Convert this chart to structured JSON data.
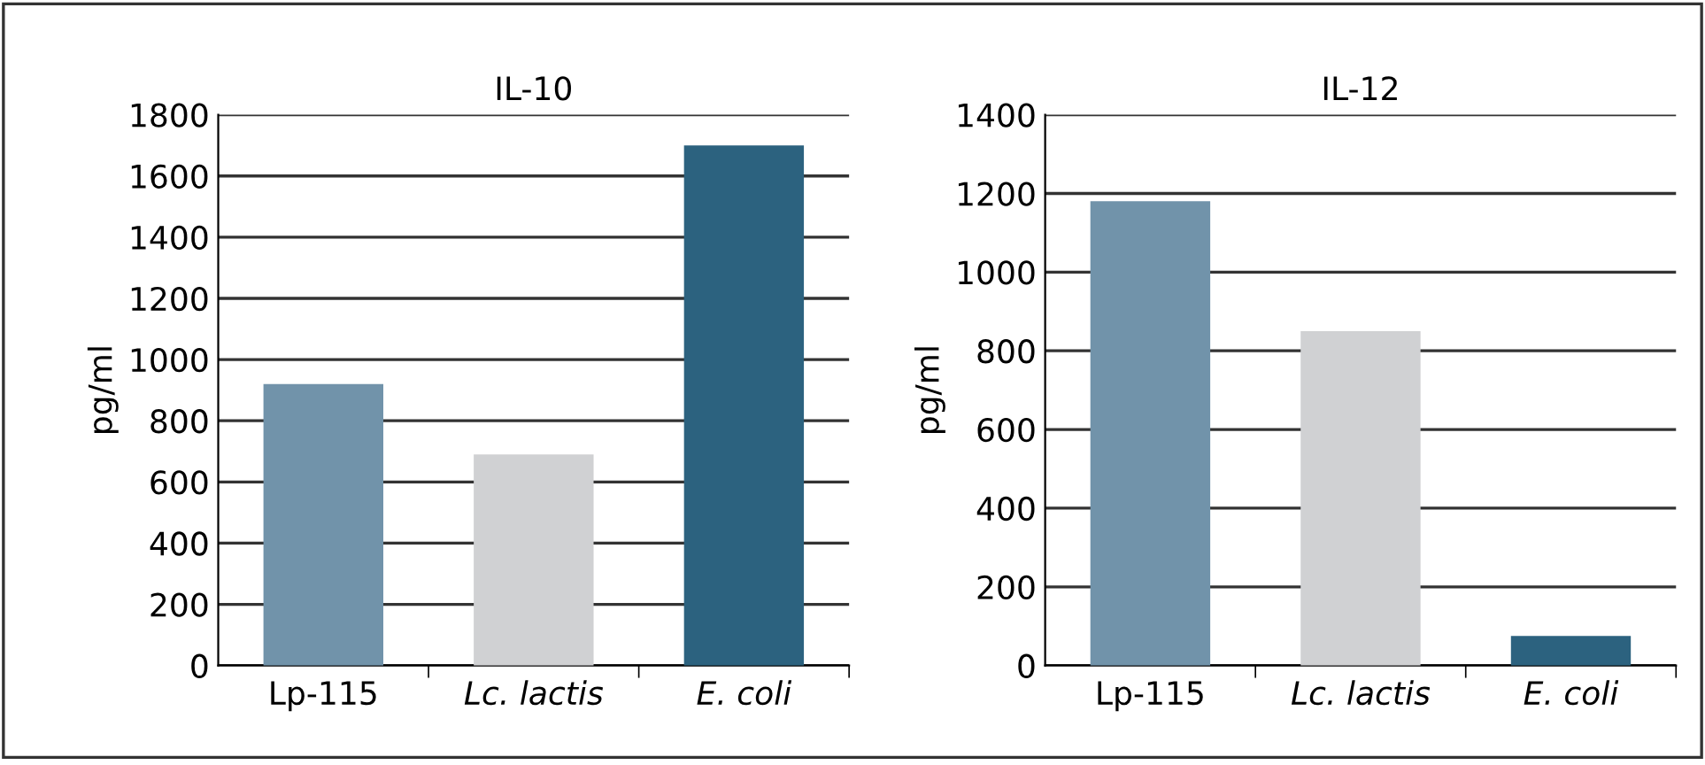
{
  "chart_data": [
    {
      "type": "bar",
      "title": "IL-10",
      "ylabel": "pg/ml",
      "categories": [
        "Lp-115",
        "Lc. lactis",
        "E. coli"
      ],
      "values": [
        920,
        690,
        1700
      ],
      "colors": [
        "#7193aa",
        "#d0d1d3",
        "#2c627f"
      ],
      "ylim": [
        0,
        1800
      ],
      "yticks": [
        0,
        200,
        400,
        600,
        800,
        1000,
        1200,
        1400,
        1600,
        1800
      ],
      "grid": "y",
      "legend": false
    },
    {
      "type": "bar",
      "title": "IL-12",
      "ylabel": "pg/ml",
      "categories": [
        "Lp-115",
        "Lc. lactis",
        "E. coli"
      ],
      "values": [
        1180,
        850,
        75
      ],
      "colors": [
        "#7193aa",
        "#d0d1d3",
        "#2c627f"
      ],
      "ylim": [
        0,
        1400
      ],
      "yticks": [
        0,
        200,
        400,
        600,
        800,
        1000,
        1200,
        1400
      ],
      "grid": "y",
      "legend": false
    }
  ]
}
